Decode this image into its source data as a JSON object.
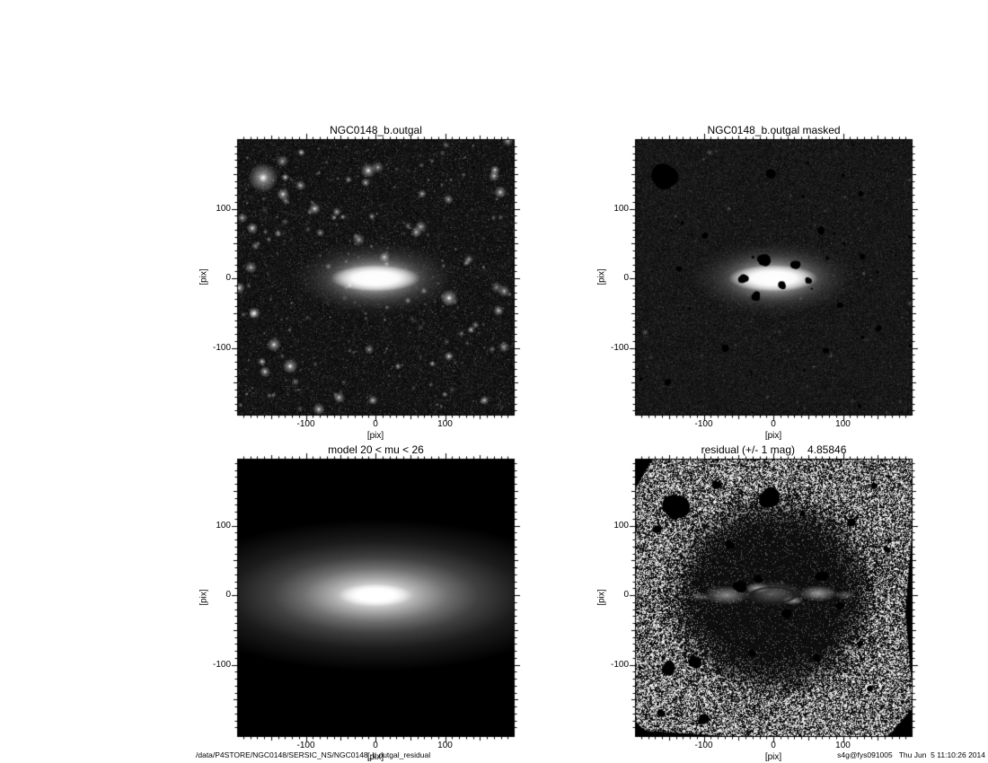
{
  "page": {
    "background": "#ffffff",
    "foreground": "#000000"
  },
  "panels": [
    {
      "key": "image",
      "title": "NGC0148_b.outgal"
    },
    {
      "key": "masked",
      "title": "NGC0148_b.outgal masked"
    },
    {
      "key": "model",
      "title": "model 20 < mu < 26"
    },
    {
      "key": "residual",
      "title": "residual (+/- 1 mag)",
      "residual_value": "4.85846"
    }
  ],
  "axes": {
    "x_label": "[pix]",
    "y_label": "[pix]",
    "x_tick_labels": [
      "-100",
      "0",
      "100"
    ],
    "y_tick_labels": [
      "100",
      "0",
      "-100"
    ]
  },
  "footer": {
    "path": "/data/P4STORE/NGC0148/SERSIC_NS/NGC0148_b.outgal_residual",
    "signature": "s4g@fys091005",
    "timestamp": "Thu Jun  5 11:10:26 2014"
  },
  "chart_data": [
    {
      "type": "heatmap",
      "title": "NGC0148_b.outgal",
      "xlabel": "[pix]",
      "ylabel": "[pix]",
      "xlim": [
        -198,
        198
      ],
      "ylim": [
        -198,
        198
      ],
      "xticks": [
        -100,
        0,
        100
      ],
      "yticks": [
        -100,
        0,
        100
      ],
      "description": "Observed grayscale image of edge-on galaxy NGC0148 with many field stars; bright lens-shaped core at (0,0) with diffuse elliptical halo."
    },
    {
      "type": "heatmap",
      "title": "NGC0148_b.outgal masked",
      "xlabel": "[pix]",
      "ylabel": "[pix]",
      "xlim": [
        -198,
        198
      ],
      "ylim": [
        -198,
        198
      ],
      "xticks": [
        -100,
        0,
        100
      ],
      "yticks": [
        -100,
        0,
        100
      ],
      "description": "Same image with point sources masked out as black irregular blobs; largest mask near (-160,140)."
    },
    {
      "type": "heatmap",
      "title": "model 20 < mu < 26",
      "xlabel": "[pix]",
      "ylabel": "[pix]",
      "xlim": [
        -198,
        198
      ],
      "ylim": [
        -198,
        198
      ],
      "xticks": [
        -100,
        0,
        100
      ],
      "yticks": [
        -100,
        0,
        100
      ],
      "description": "Smooth elliptical Sersic model surface-brightness map, axis ratio ~0.37, white core fading to black."
    },
    {
      "type": "heatmap",
      "title": "residual (+/- 1 mag)",
      "xlabel": "[pix]",
      "ylabel": "[pix]",
      "xlim": [
        -198,
        198
      ],
      "ylim": [
        -198,
        198
      ],
      "xticks": [
        -100,
        0,
        100
      ],
      "yticks": [
        -100,
        0,
        100
      ],
      "value": 4.85846,
      "description": "Data-minus-model residual stretched +/- 1 mag: heavy salt-and-pepper noise outside, smooth dark subtracted zone around center, faint gray disk residual and masked black blobs."
    }
  ]
}
